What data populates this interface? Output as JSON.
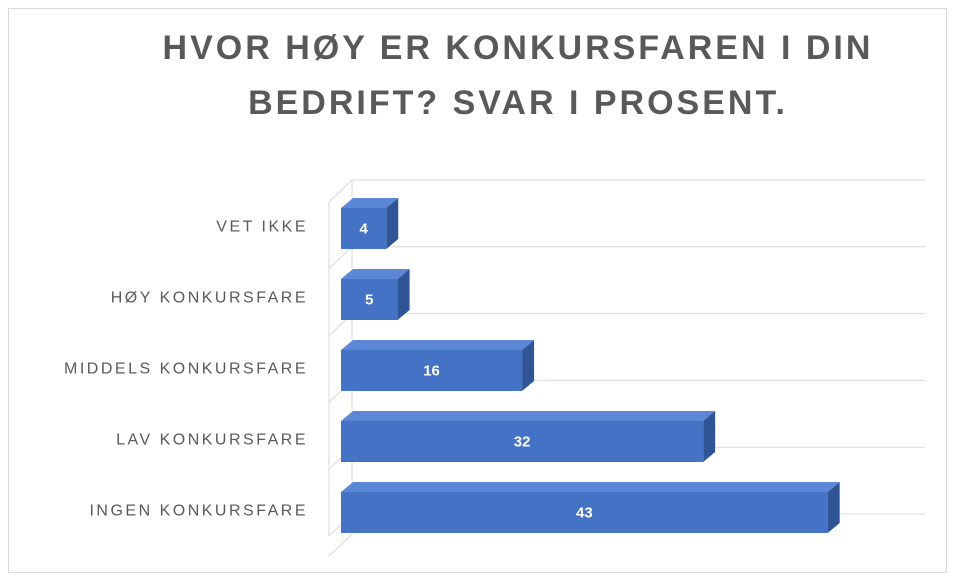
{
  "chart_data": {
    "type": "bar3d",
    "title": [
      "HVOR HØY ER KONKURSFAREN I DIN",
      "BEDRIFT? SVAR I PROSENT."
    ],
    "categories": [
      "VET IKKE",
      "HØY KONKURSFARE",
      "MIDDELS KONKURSFARE",
      "LAV KONKURSFARE",
      "INGEN KONKURSFARE"
    ],
    "values": [
      4,
      5,
      16,
      32,
      43
    ],
    "color": "#4472c4",
    "grid": true
  }
}
